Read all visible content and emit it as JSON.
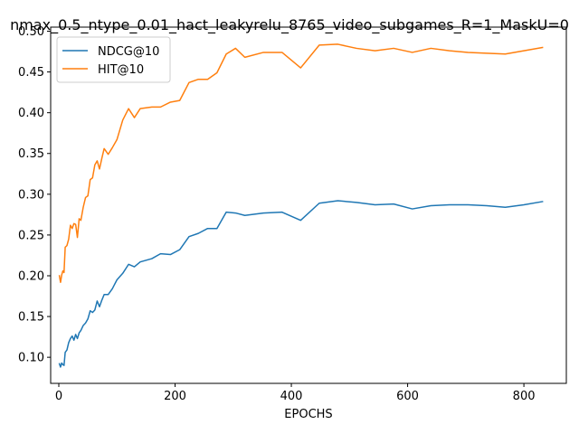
{
  "chart_data": {
    "type": "line",
    "title": "nmax_0.5_ntype_0.01_hact_leakyrelu_8765_video_subgames_R=1_MaskU=0",
    "xlabel": "EPOCHS",
    "ylabel": "",
    "xlim": [
      -14,
      873
    ],
    "ylim": [
      0.068,
      0.505
    ],
    "xticks": [
      0,
      200,
      400,
      600,
      800
    ],
    "yticks": [
      0.1,
      0.15,
      0.2,
      0.25,
      0.3,
      0.35,
      0.4,
      0.45,
      0.5
    ],
    "ytick_labels": [
      "0.10",
      "0.15",
      "0.20",
      "0.25",
      "0.30",
      "0.35",
      "0.40",
      "0.45",
      "0.50"
    ],
    "grid": false,
    "legend_position": "top-left",
    "series": [
      {
        "name": "NDCG@10",
        "color": "#1f77b4",
        "x": [
          1,
          3,
          5,
          7,
          9,
          11,
          14,
          17,
          20,
          23,
          26,
          29,
          32,
          35,
          38,
          42,
          46,
          50,
          54,
          58,
          62,
          66,
          70,
          74,
          78,
          85,
          92,
          100,
          110,
          120,
          130,
          140,
          160,
          175,
          192,
          208,
          224,
          240,
          256,
          272,
          288,
          304,
          320,
          352,
          384,
          416,
          448,
          480,
          512,
          544,
          576,
          608,
          640,
          672,
          704,
          736,
          768,
          800,
          832
        ],
        "y": [
          0.092,
          0.088,
          0.093,
          0.091,
          0.09,
          0.106,
          0.109,
          0.118,
          0.123,
          0.126,
          0.121,
          0.128,
          0.123,
          0.13,
          0.133,
          0.139,
          0.142,
          0.147,
          0.157,
          0.155,
          0.158,
          0.169,
          0.162,
          0.17,
          0.177,
          0.177,
          0.184,
          0.195,
          0.203,
          0.214,
          0.211,
          0.217,
          0.221,
          0.227,
          0.226,
          0.232,
          0.248,
          0.252,
          0.258,
          0.258,
          0.278,
          0.277,
          0.274,
          0.277,
          0.278,
          0.268,
          0.289,
          0.292,
          0.29,
          0.287,
          0.288,
          0.282,
          0.286,
          0.287,
          0.287,
          0.286,
          0.284,
          0.287,
          0.291
        ]
      },
      {
        "name": "HIT@10",
        "color": "#ff7f0e",
        "x": [
          1,
          3,
          5,
          7,
          9,
          11,
          14,
          17,
          20,
          23,
          26,
          29,
          32,
          35,
          38,
          42,
          46,
          50,
          54,
          58,
          62,
          66,
          70,
          74,
          78,
          85,
          92,
          100,
          110,
          120,
          130,
          140,
          160,
          175,
          192,
          208,
          224,
          240,
          256,
          272,
          288,
          304,
          320,
          352,
          384,
          416,
          448,
          480,
          512,
          544,
          576,
          608,
          640,
          672,
          704,
          736,
          768,
          800,
          832
        ],
        "y": [
          0.2,
          0.192,
          0.201,
          0.206,
          0.204,
          0.235,
          0.237,
          0.245,
          0.262,
          0.258,
          0.264,
          0.263,
          0.247,
          0.27,
          0.268,
          0.284,
          0.296,
          0.298,
          0.318,
          0.32,
          0.336,
          0.341,
          0.331,
          0.344,
          0.356,
          0.349,
          0.357,
          0.367,
          0.391,
          0.405,
          0.394,
          0.405,
          0.407,
          0.407,
          0.413,
          0.415,
          0.437,
          0.441,
          0.441,
          0.449,
          0.472,
          0.479,
          0.468,
          0.474,
          0.474,
          0.455,
          0.483,
          0.484,
          0.479,
          0.476,
          0.479,
          0.474,
          0.479,
          0.476,
          0.474,
          0.473,
          0.472,
          0.476,
          0.48
        ]
      }
    ]
  }
}
